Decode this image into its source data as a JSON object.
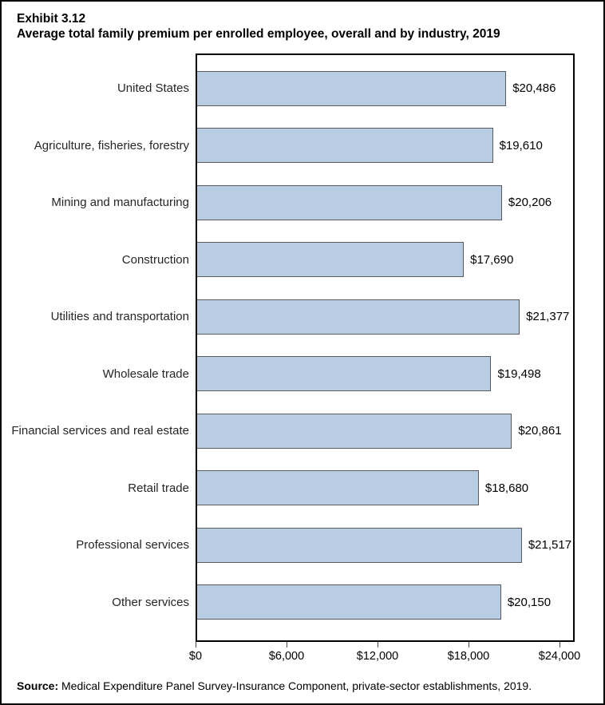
{
  "title": {
    "exhibit": "Exhibit 3.12",
    "heading": "Average total family premium per enrolled employee, overall and by industry, 2019"
  },
  "chart_data": {
    "type": "bar",
    "orientation": "horizontal",
    "title": "Average total family premium per enrolled employee, overall and by industry, 2019",
    "categories": [
      "United States",
      "Agriculture, fisheries, forestry",
      "Mining and manufacturing",
      "Construction",
      "Utilities and transportation",
      "Wholesale trade",
      "Financial services and real estate",
      "Retail trade",
      "Professional services",
      "Other services"
    ],
    "values": [
      20486,
      19610,
      20206,
      17690,
      21377,
      19498,
      20861,
      18680,
      21517,
      20150
    ],
    "value_labels": [
      "$20,486",
      "$19,610",
      "$20,206",
      "$17,690",
      "$21,377",
      "$19,498",
      "$20,861",
      "$18,680",
      "$21,517",
      "$20,150"
    ],
    "xlabel": "",
    "ylabel": "",
    "axis": {
      "min": 0,
      "max": 25000,
      "ticks": [
        0,
        6000,
        12000,
        18000,
        24000
      ],
      "tick_labels": [
        "$0",
        "$6,000",
        "$12,000",
        "$18,000",
        "$24,000"
      ]
    },
    "grid": false,
    "legend": false,
    "bar_color": "#B8CCE4",
    "bar_border_color": "#5A5A5A"
  },
  "source": {
    "label": "Source:",
    "text": " Medical Expenditure Panel Survey-Insurance Component, private-sector establishments, 2019."
  }
}
